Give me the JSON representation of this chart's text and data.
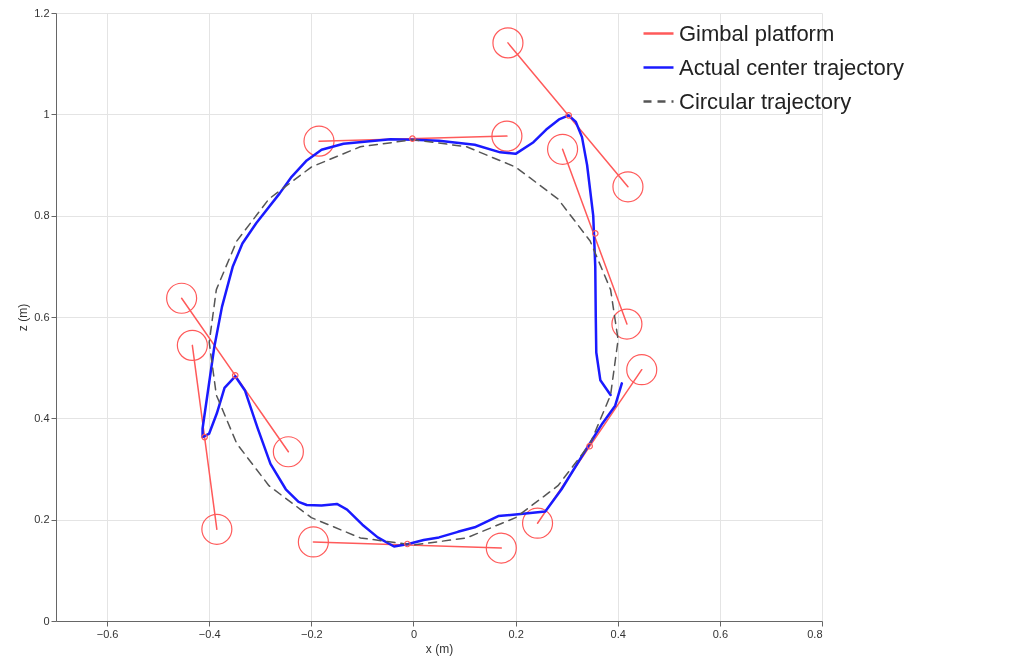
{
  "chart_data": {
    "type": "line",
    "xlabel": "x (m)",
    "ylabel": "z (m)",
    "xlim": [
      -0.7,
      0.8
    ],
    "xticks": [
      -0.6,
      -0.4,
      -0.2,
      0,
      0.2,
      0.4,
      0.6,
      0.8
    ],
    "ylim": [
      0,
      1.2
    ],
    "yticks": [
      0,
      0.2,
      0.4,
      0.6,
      0.8,
      1,
      1.2
    ],
    "grid": true,
    "legend": "top right",
    "series": [
      {
        "name": "Gimbal platform",
        "marker": "circle",
        "color": "#ff5a5a",
        "x": [
          -0.185,
          0.183,
          null,
          0.185,
          0.42,
          null,
          0.292,
          0.418,
          null,
          0.447,
          0.243,
          null,
          -0.196,
          0.172,
          null,
          -0.454,
          -0.245,
          null,
          -0.433,
          -0.385
        ],
        "values": [
          0.947,
          0.957,
          null,
          1.141,
          0.857,
          null,
          0.931,
          0.586,
          null,
          0.496,
          0.193,
          null,
          0.156,
          0.144,
          null,
          0.637,
          0.334,
          null,
          0.544,
          0.181
        ]
      },
      {
        "name": "Actual center trajectory",
        "color": "#1a1aff",
        "x": [
          0.386,
          0.366,
          0.358,
          0.357,
          0.356,
          0.352,
          0.34,
          0.33,
          0.318,
          0.304,
          0.285,
          0.26,
          0.235,
          0.2,
          0.17,
          0.12,
          0.05,
          0,
          -0.045,
          -0.137,
          -0.18,
          -0.209,
          -0.24,
          -0.262,
          -0.308,
          -0.335,
          -0.354,
          -0.375,
          -0.39,
          -0.403,
          -0.413,
          -0.413,
          -0.4,
          -0.385,
          -0.37,
          -0.349,
          -0.33,
          -0.305,
          -0.28,
          -0.25,
          -0.225,
          -0.209,
          -0.18,
          -0.15,
          -0.13,
          -0.1,
          -0.07,
          -0.038,
          -0.01,
          0.02,
          0.05,
          0.087,
          0.12,
          0.166,
          0.2,
          0.258,
          0.29,
          0.337,
          0.37,
          0.395,
          0.408
        ],
        "values": [
          0.446,
          0.475,
          0.53,
          0.6,
          0.7,
          0.8,
          0.9,
          0.955,
          0.985,
          0.998,
          0.99,
          0.97,
          0.945,
          0.922,
          0.925,
          0.94,
          0.948,
          0.95,
          0.951,
          0.942,
          0.93,
          0.909,
          0.875,
          0.844,
          0.785,
          0.745,
          0.699,
          0.62,
          0.541,
          0.45,
          0.38,
          0.363,
          0.37,
          0.41,
          0.46,
          0.483,
          0.455,
          0.38,
          0.31,
          0.26,
          0.235,
          0.229,
          0.228,
          0.231,
          0.22,
          0.19,
          0.165,
          0.147,
          0.152,
          0.16,
          0.165,
          0.176,
          0.185,
          0.207,
          0.21,
          0.216,
          0.26,
          0.337,
          0.39,
          0.425,
          0.469
        ]
      },
      {
        "name": "Circular trajectory",
        "line_style": "dashed",
        "color": "#555555",
        "x": [
          0.4,
          0.386,
          0.346,
          0.283,
          0.2,
          0.104,
          0,
          -0.104,
          -0.2,
          -0.283,
          -0.346,
          -0.386,
          -0.4,
          -0.386,
          -0.346,
          -0.283,
          -0.2,
          -0.104,
          0,
          0.104,
          0.2,
          0.283,
          0.346,
          0.386,
          0.4
        ],
        "values": [
          0.56,
          0.654,
          0.75,
          0.833,
          0.896,
          0.936,
          0.95,
          0.936,
          0.896,
          0.833,
          0.75,
          0.654,
          0.55,
          0.446,
          0.35,
          0.267,
          0.204,
          0.164,
          0.15,
          0.164,
          0.204,
          0.267,
          0.35,
          0.446,
          0.55
        ]
      },
      {
        "type": "scatter",
        "marker": "circle",
        "color": "#ff5a5a",
        "x": [
          -0.002,
          0.304,
          0.356,
          0.345,
          -0.012,
          -0.349,
          -0.409
        ],
        "values": [
          0.952,
          0.998,
          0.765,
          0.345,
          0.152,
          0.485,
          0.363
        ]
      }
    ]
  }
}
